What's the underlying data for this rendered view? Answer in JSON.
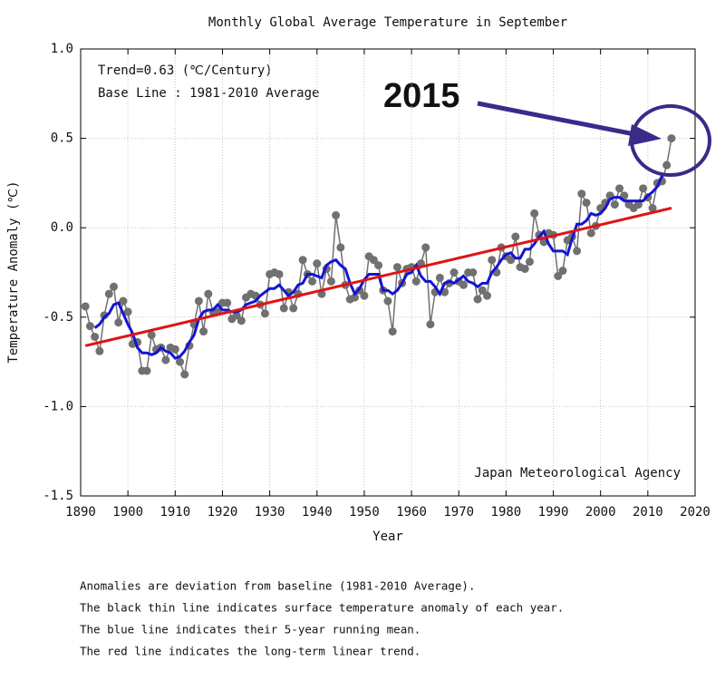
{
  "chart_data": {
    "type": "line",
    "title": "Monthly Global Average Temperature in September",
    "x_label": "Year",
    "y_label": "Temperature Anomaly (℃)",
    "annotations": [
      "Trend=0.63 (℃/Century)",
      "Base Line : 1981-2010 Average",
      "2015",
      "Japan Meteorological Agency"
    ],
    "notes": [
      "Anomalies are deviation from baseline (1981-2010 Average).",
      "The black thin line indicates surface temperature anomaly of each year.",
      "The blue line indicates their 5-year running mean.",
      "The red line indicates the long-term linear trend."
    ],
    "grid": true,
    "xlim": [
      1890,
      2020
    ],
    "xticks": [
      1890,
      1900,
      1910,
      1920,
      1930,
      1940,
      1950,
      1960,
      1970,
      1980,
      1990,
      2000,
      2010,
      2020
    ],
    "ylim": [
      -1.5,
      1.0
    ],
    "yticks": [
      {
        "value": 1.0,
        "label": "1.0"
      },
      0.5,
      {
        "value": 0,
        "label": "0.0"
      },
      -0.5,
      {
        "value": -1.0,
        "label": "-1.0"
      },
      -1.5
    ],
    "x": [
      1891,
      1892,
      1893,
      1894,
      1895,
      1896,
      1897,
      1898,
      1899,
      1900,
      1901,
      1902,
      1903,
      1904,
      1905,
      1906,
      1907,
      1908,
      1909,
      1910,
      1911,
      1912,
      1913,
      1914,
      1915,
      1916,
      1917,
      1918,
      1919,
      1920,
      1921,
      1922,
      1923,
      1924,
      1925,
      1926,
      1927,
      1928,
      1929,
      1930,
      1931,
      1932,
      1933,
      1934,
      1935,
      1936,
      1937,
      1938,
      1939,
      1940,
      1941,
      1942,
      1943,
      1944,
      1945,
      1946,
      1947,
      1948,
      1949,
      1950,
      1951,
      1952,
      1953,
      1954,
      1955,
      1956,
      1957,
      1958,
      1959,
      1960,
      1961,
      1962,
      1963,
      1964,
      1965,
      1966,
      1967,
      1968,
      1969,
      1970,
      1971,
      1972,
      1973,
      1974,
      1975,
      1976,
      1977,
      1978,
      1979,
      1980,
      1981,
      1982,
      1983,
      1984,
      1985,
      1986,
      1987,
      1988,
      1989,
      1990,
      1991,
      1992,
      1993,
      1994,
      1995,
      1996,
      1997,
      1998,
      1999,
      2000,
      2001,
      2002,
      2003,
      2004,
      2005,
      2006,
      2007,
      2008,
      2009,
      2010,
      2011,
      2012,
      2013,
      2014,
      2015
    ],
    "series": [
      {
        "name": "anomaly",
        "color": "#707070",
        "markers": true,
        "values": [
          -0.44,
          -0.55,
          -0.61,
          -0.69,
          -0.49,
          -0.37,
          -0.33,
          -0.53,
          -0.41,
          -0.47,
          -0.65,
          -0.64,
          -0.8,
          -0.8,
          -0.6,
          -0.68,
          -0.67,
          -0.74,
          -0.67,
          -0.68,
          -0.75,
          -0.82,
          -0.66,
          -0.54,
          -0.41,
          -0.58,
          -0.37,
          -0.47,
          -0.47,
          -0.42,
          -0.42,
          -0.51,
          -0.49,
          -0.52,
          -0.39,
          -0.37,
          -0.38,
          -0.43,
          -0.48,
          -0.26,
          -0.25,
          -0.26,
          -0.45,
          -0.36,
          -0.45,
          -0.37,
          -0.18,
          -0.26,
          -0.3,
          -0.2,
          -0.37,
          -0.23,
          -0.3,
          0.07,
          -0.11,
          -0.32,
          -0.4,
          -0.39,
          -0.35,
          -0.38,
          -0.16,
          -0.18,
          -0.21,
          -0.35,
          -0.41,
          -0.58,
          -0.22,
          -0.31,
          -0.23,
          -0.22,
          -0.3,
          -0.2,
          -0.11,
          -0.54,
          -0.36,
          -0.28,
          -0.36,
          -0.31,
          -0.25,
          -0.3,
          -0.32,
          -0.25,
          -0.25,
          -0.4,
          -0.35,
          -0.38,
          -0.18,
          -0.25,
          -0.11,
          -0.16,
          -0.18,
          -0.05,
          -0.22,
          -0.23,
          -0.19,
          0.08,
          -0.04,
          -0.08,
          -0.03,
          -0.04,
          -0.27,
          -0.24,
          -0.07,
          -0.05,
          -0.13,
          0.19,
          0.14,
          -0.03,
          0.01,
          0.11,
          0.14,
          0.18,
          0.13,
          0.22,
          0.18,
          0.13,
          0.11,
          0.13,
          0.22,
          0.17,
          0.11,
          0.25,
          0.26,
          0.35,
          0.5
        ]
      },
      {
        "name": "5-year running mean",
        "color": "#1414d2",
        "markers": false,
        "values": [
          null,
          null,
          -0.56,
          -0.54,
          -0.5,
          -0.48,
          -0.43,
          -0.42,
          -0.48,
          -0.54,
          -0.59,
          -0.67,
          -0.7,
          -0.7,
          -0.71,
          -0.7,
          -0.67,
          -0.69,
          -0.7,
          -0.73,
          -0.72,
          -0.69,
          -0.64,
          -0.6,
          -0.51,
          -0.47,
          -0.46,
          -0.46,
          -0.43,
          -0.46,
          -0.46,
          -0.47,
          -0.47,
          -0.46,
          -0.43,
          -0.42,
          -0.41,
          -0.38,
          -0.36,
          -0.34,
          -0.34,
          -0.32,
          -0.35,
          -0.38,
          -0.36,
          -0.32,
          -0.31,
          -0.26,
          -0.26,
          -0.27,
          -0.28,
          -0.21,
          -0.19,
          -0.18,
          -0.21,
          -0.23,
          -0.31,
          -0.37,
          -0.34,
          -0.29,
          -0.26,
          -0.26,
          -0.26,
          -0.35,
          -0.35,
          -0.37,
          -0.35,
          -0.31,
          -0.26,
          -0.25,
          -0.21,
          -0.27,
          -0.3,
          -0.3,
          -0.33,
          -0.37,
          -0.31,
          -0.3,
          -0.31,
          -0.29,
          -0.27,
          -0.3,
          -0.31,
          -0.33,
          -0.31,
          -0.31,
          -0.25,
          -0.22,
          -0.18,
          -0.15,
          -0.14,
          -0.17,
          -0.17,
          -0.12,
          -0.12,
          -0.09,
          -0.05,
          -0.02,
          -0.09,
          -0.13,
          -0.13,
          -0.13,
          -0.15,
          -0.06,
          0.02,
          0.02,
          0.04,
          0.08,
          0.07,
          0.08,
          0.11,
          0.16,
          0.17,
          0.17,
          0.15,
          0.15,
          0.15,
          0.15,
          0.15,
          0.18,
          0.2,
          0.23,
          0.29,
          null,
          null
        ]
      },
      {
        "name": "linear trend",
        "color": "#e01414",
        "markers": false,
        "x": [
          1891,
          2015
        ],
        "values": [
          -0.66,
          0.11
        ]
      }
    ]
  }
}
